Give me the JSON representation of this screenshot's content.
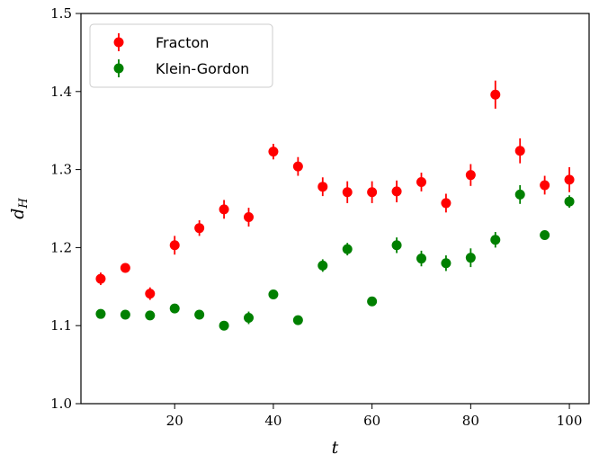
{
  "chart_data": {
    "type": "scatter",
    "title": "",
    "xlabel": "t",
    "ylabel_main": "d",
    "ylabel_sub": "H",
    "xlim": [
      1,
      104
    ],
    "ylim": [
      1.0,
      1.5
    ],
    "xticks": [
      20,
      40,
      60,
      80,
      100
    ],
    "yticks": [
      1.0,
      1.1,
      1.2,
      1.3,
      1.4,
      1.5
    ],
    "xtick_labels": [
      "20",
      "40",
      "60",
      "80",
      "100"
    ],
    "ytick_labels": [
      "1.0",
      "1.1",
      "1.2",
      "1.3",
      "1.4",
      "1.5"
    ],
    "grid": false,
    "legend_position": "top-left",
    "series": [
      {
        "name": "Fracton",
        "color": "#ff0000",
        "x": [
          5,
          10,
          15,
          20,
          25,
          30,
          35,
          40,
          45,
          50,
          55,
          60,
          65,
          70,
          75,
          80,
          85,
          90,
          95,
          100
        ],
        "y": [
          1.16,
          1.174,
          1.141,
          1.203,
          1.225,
          1.249,
          1.239,
          1.323,
          1.304,
          1.278,
          1.271,
          1.271,
          1.272,
          1.284,
          1.257,
          1.293,
          1.396,
          1.324,
          1.28,
          1.287
        ],
        "yerr": [
          0.008,
          0.006,
          0.008,
          0.012,
          0.01,
          0.012,
          0.012,
          0.01,
          0.012,
          0.012,
          0.014,
          0.014,
          0.014,
          0.012,
          0.012,
          0.014,
          0.018,
          0.016,
          0.012,
          0.016
        ]
      },
      {
        "name": "Klein-Gordon",
        "color": "#008000",
        "x": [
          5,
          10,
          15,
          20,
          25,
          30,
          35,
          40,
          45,
          50,
          55,
          60,
          65,
          70,
          75,
          80,
          85,
          90,
          95,
          100
        ],
        "y": [
          1.115,
          1.114,
          1.113,
          1.122,
          1.114,
          1.1,
          1.11,
          1.14,
          1.107,
          1.177,
          1.198,
          1.131,
          1.203,
          1.186,
          1.18,
          1.187,
          1.21,
          1.268,
          1.216,
          1.259
        ],
        "yerr": [
          0.004,
          0.004,
          0.004,
          0.004,
          0.004,
          0.004,
          0.008,
          0.004,
          0.004,
          0.008,
          0.008,
          0.004,
          0.01,
          0.01,
          0.01,
          0.012,
          0.01,
          0.012,
          0.006,
          0.008
        ]
      }
    ]
  }
}
